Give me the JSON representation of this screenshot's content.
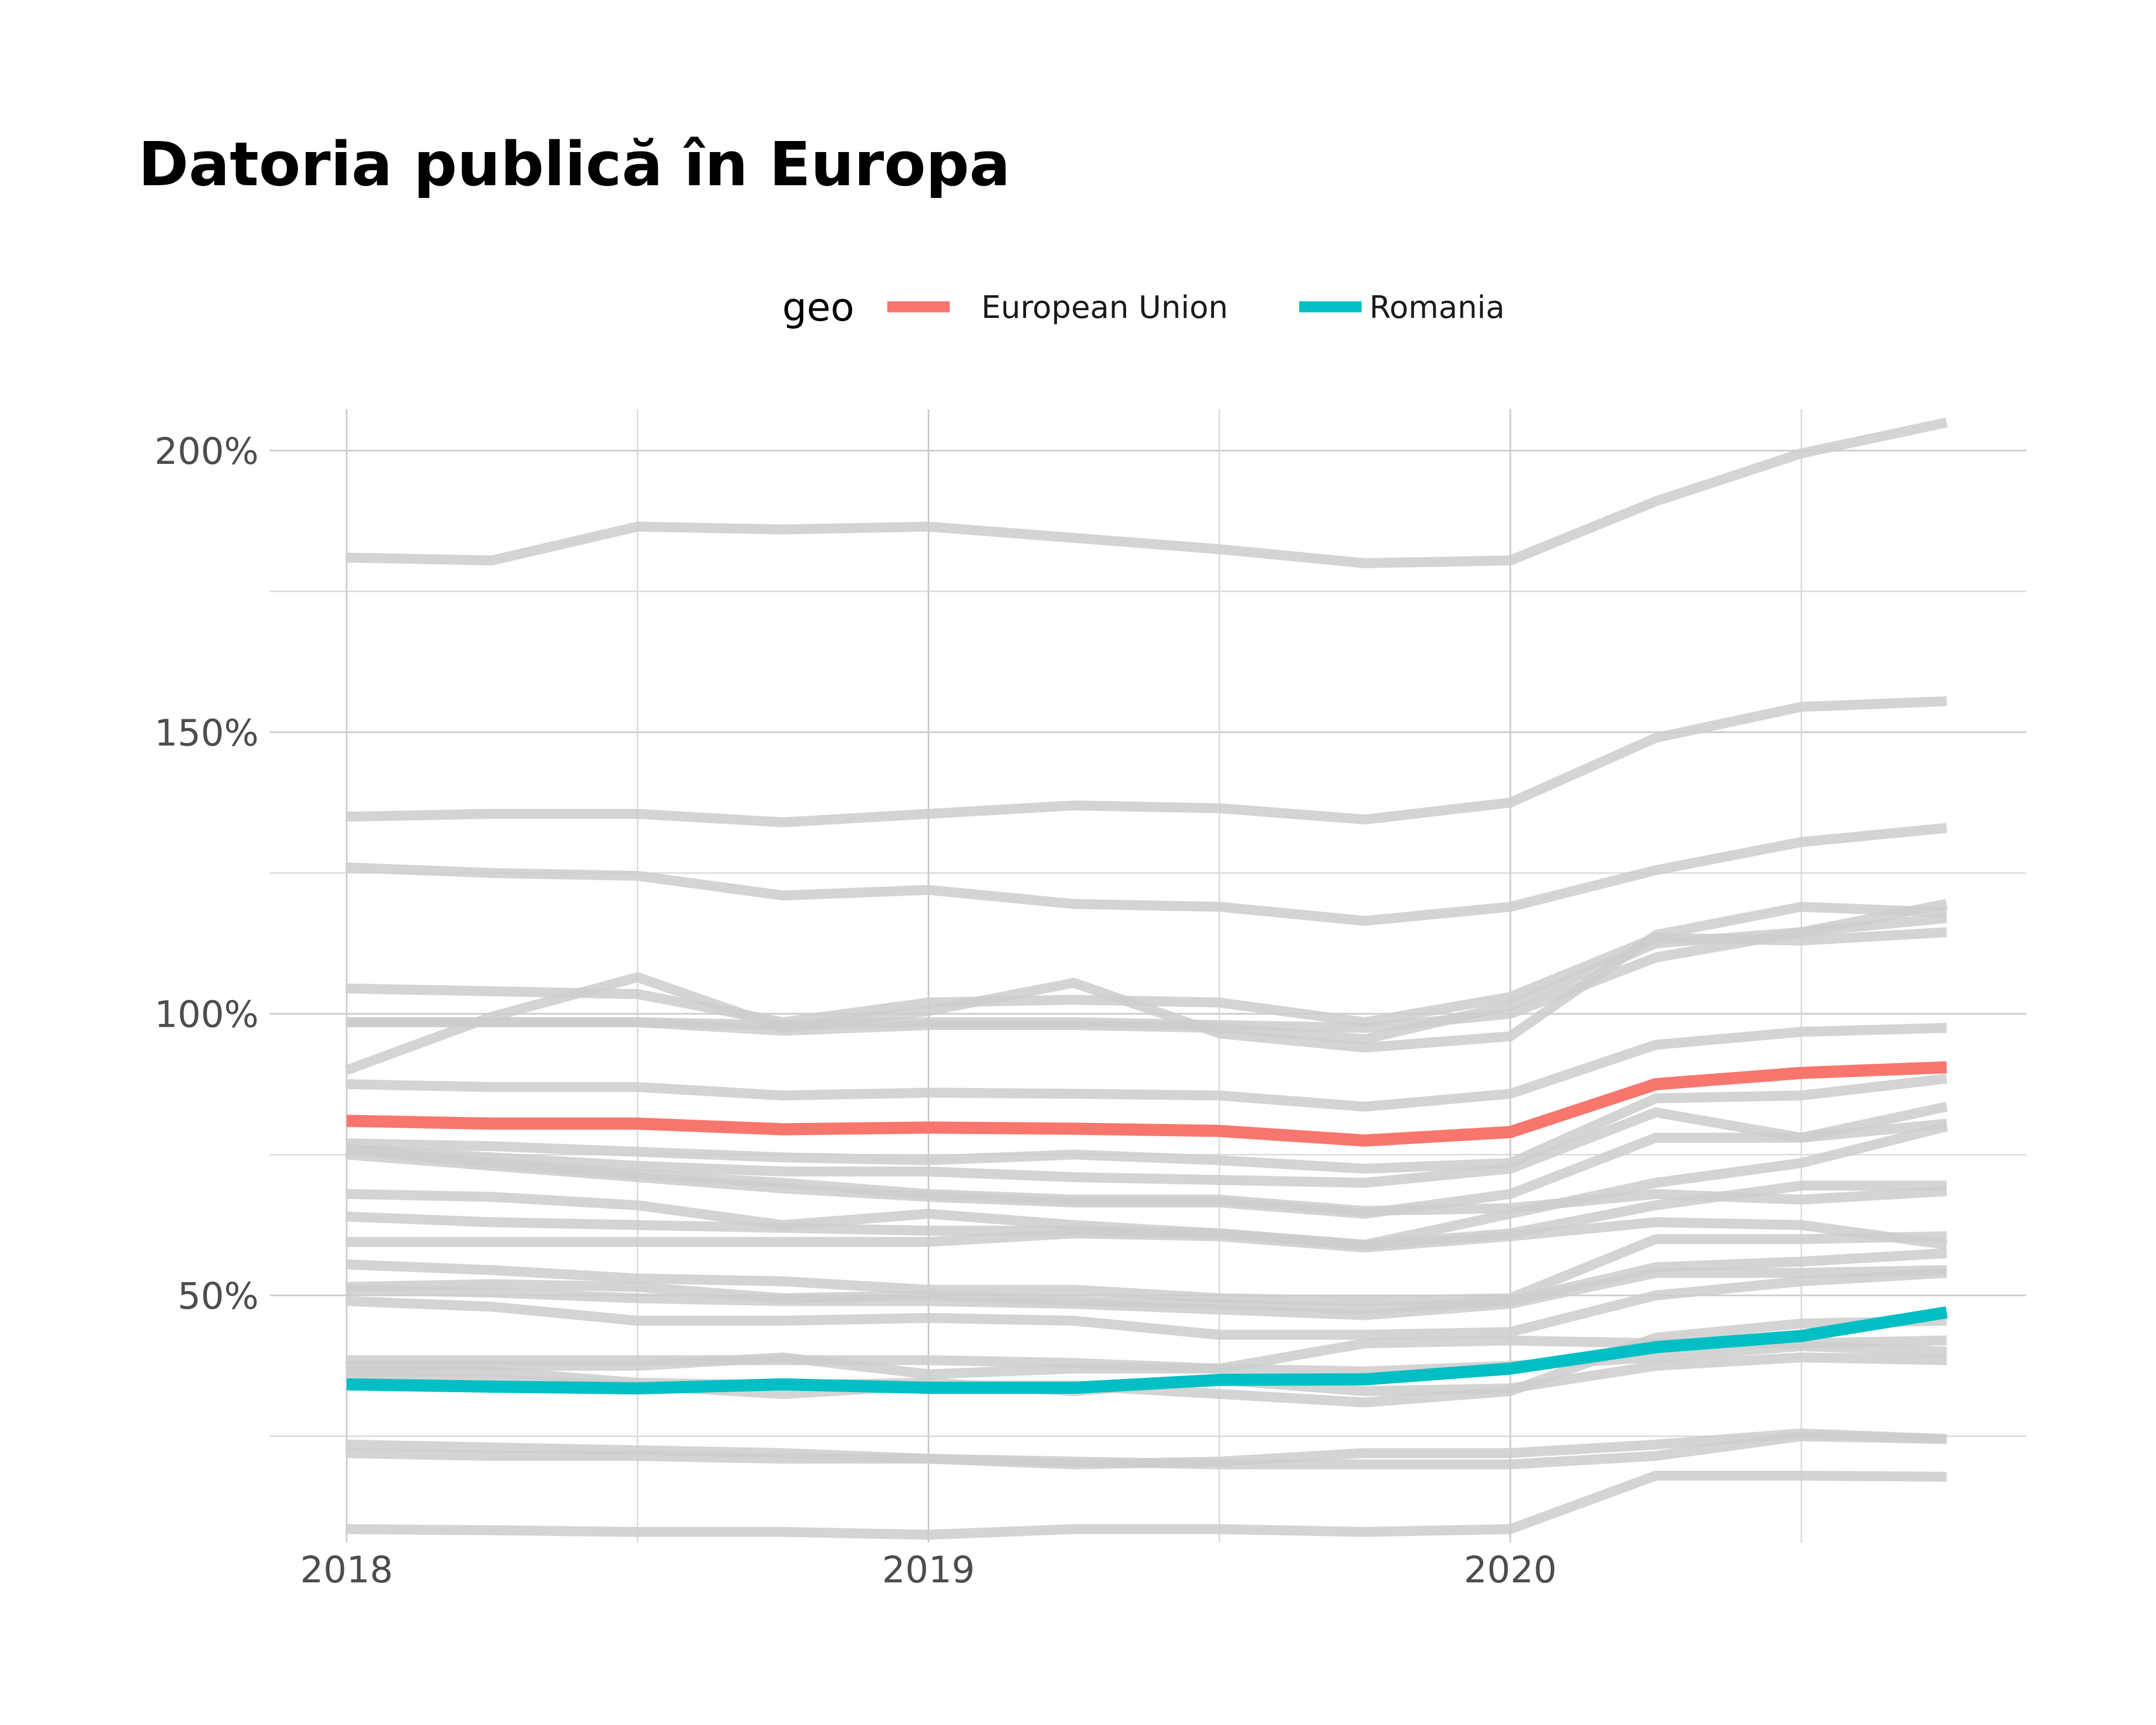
{
  "chart_data": {
    "type": "line",
    "title": "Datoria publică în Europa",
    "xlabel": "",
    "ylabel": "",
    "x_ticks": [
      "2018",
      "2019",
      "2020"
    ],
    "y_ticks": [
      "50%",
      "100%",
      "150%",
      "200%"
    ],
    "xlim": [
      2018,
      2020.875
    ],
    "ylim": [
      0.07,
      2.08
    ],
    "legend": {
      "title": "geo",
      "position": "top",
      "entries": [
        "European Union",
        "Romania"
      ]
    },
    "grid": true,
    "colors": {
      "European Union": "#F8766D",
      "Romania": "#00BFC4",
      "other": "#cccccc"
    },
    "x": [
      2018,
      2018.25,
      2018.5,
      2018.75,
      2019,
      2019.25,
      2019.5,
      2019.75,
      2020,
      2020.25,
      2020.5,
      2020.75
    ],
    "highlighted_series": [
      {
        "name": "European Union",
        "values": [
          0.81,
          0.805,
          0.805,
          0.795,
          0.798,
          0.796,
          0.792,
          0.775,
          0.79,
          0.875,
          0.895,
          0.905
        ]
      },
      {
        "name": "Romania",
        "values": [
          0.342,
          0.338,
          0.335,
          0.342,
          0.336,
          0.336,
          0.35,
          0.351,
          0.37,
          0.408,
          0.428,
          0.47
        ]
      }
    ],
    "background_series": [
      [
        1.81,
        1.805,
        1.865,
        1.86,
        1.865,
        1.845,
        1.825,
        1.8,
        1.805,
        1.91,
        1.995,
        2.05
      ],
      [
        1.35,
        1.355,
        1.355,
        1.34,
        1.355,
        1.37,
        1.365,
        1.345,
        1.375,
        1.49,
        1.545,
        1.555
      ],
      [
        1.26,
        1.25,
        1.245,
        1.21,
        1.22,
        1.195,
        1.19,
        1.165,
        1.19,
        1.255,
        1.305,
        1.33
      ],
      [
        1.045,
        1.04,
        1.035,
        0.985,
        1.02,
        1.025,
        1.02,
        0.985,
        1.03,
        1.135,
        1.13,
        1.145
      ],
      [
        0.985,
        0.985,
        0.985,
        0.98,
        0.985,
        0.985,
        0.98,
        0.975,
        1.0,
        1.1,
        1.145,
        1.17
      ],
      [
        0.9,
        0.995,
        1.065,
        0.975,
        1.005,
        1.055,
        0.965,
        0.94,
        0.96,
        1.14,
        1.19,
        1.18
      ],
      [
        0.985,
        0.985,
        0.985,
        0.97,
        0.98,
        0.98,
        0.975,
        0.955,
        1.015,
        1.125,
        1.145,
        1.195
      ],
      [
        0.875,
        0.87,
        0.87,
        0.855,
        0.86,
        0.858,
        0.855,
        0.835,
        0.858,
        0.945,
        0.968,
        0.975
      ],
      [
        0.77,
        0.765,
        0.755,
        0.745,
        0.74,
        0.75,
        0.74,
        0.725,
        0.735,
        0.85,
        0.855,
        0.885
      ],
      [
        0.76,
        0.745,
        0.73,
        0.72,
        0.72,
        0.71,
        0.705,
        0.7,
        0.725,
        0.825,
        0.78,
        0.835
      ],
      [
        0.75,
        0.73,
        0.71,
        0.69,
        0.675,
        0.665,
        0.665,
        0.645,
        0.68,
        0.78,
        0.78,
        0.805
      ],
      [
        0.68,
        0.675,
        0.66,
        0.625,
        0.645,
        0.625,
        0.61,
        0.59,
        0.645,
        0.7,
        0.735,
        0.8
      ],
      [
        0.64,
        0.63,
        0.625,
        0.62,
        0.615,
        0.615,
        0.61,
        0.59,
        0.61,
        0.66,
        0.695,
        0.695
      ],
      [
        0.595,
        0.595,
        0.595,
        0.595,
        0.595,
        0.61,
        0.605,
        0.585,
        0.605,
        0.63,
        0.625,
        0.59
      ],
      [
        0.76,
        0.735,
        0.715,
        0.7,
        0.68,
        0.67,
        0.67,
        0.65,
        0.655,
        0.68,
        0.67,
        0.685
      ],
      [
        0.555,
        0.545,
        0.53,
        0.525,
        0.51,
        0.51,
        0.495,
        0.49,
        0.495,
        0.6,
        0.6,
        0.605
      ],
      [
        0.515,
        0.52,
        0.515,
        0.495,
        0.5,
        0.49,
        0.485,
        0.475,
        0.49,
        0.55,
        0.56,
        0.575
      ],
      [
        0.51,
        0.505,
        0.495,
        0.49,
        0.49,
        0.485,
        0.475,
        0.465,
        0.485,
        0.54,
        0.54,
        0.545
      ],
      [
        0.49,
        0.48,
        0.455,
        0.455,
        0.46,
        0.455,
        0.43,
        0.43,
        0.435,
        0.5,
        0.525,
        0.54
      ],
      [
        0.385,
        0.385,
        0.385,
        0.385,
        0.385,
        0.38,
        0.37,
        0.415,
        0.42,
        0.415,
        0.415,
        0.42
      ],
      [
        0.375,
        0.375,
        0.375,
        0.39,
        0.36,
        0.37,
        0.37,
        0.365,
        0.375,
        0.39,
        0.41,
        0.4
      ],
      [
        0.36,
        0.35,
        0.34,
        0.325,
        0.34,
        0.34,
        0.325,
        0.31,
        0.33,
        0.425,
        0.45,
        0.455
      ],
      [
        0.365,
        0.365,
        0.345,
        0.34,
        0.345,
        0.33,
        0.35,
        0.33,
        0.335,
        0.375,
        0.39,
        0.385
      ],
      [
        0.235,
        0.23,
        0.225,
        0.22,
        0.21,
        0.2,
        0.205,
        0.22,
        0.22,
        0.235,
        0.255,
        0.245
      ],
      [
        0.22,
        0.215,
        0.215,
        0.21,
        0.21,
        0.205,
        0.2,
        0.2,
        0.2,
        0.215,
        0.25,
        0.245
      ],
      [
        0.085,
        0.083,
        0.08,
        0.08,
        0.075,
        0.085,
        0.085,
        0.08,
        0.085,
        0.18,
        0.18,
        0.178
      ]
    ]
  }
}
